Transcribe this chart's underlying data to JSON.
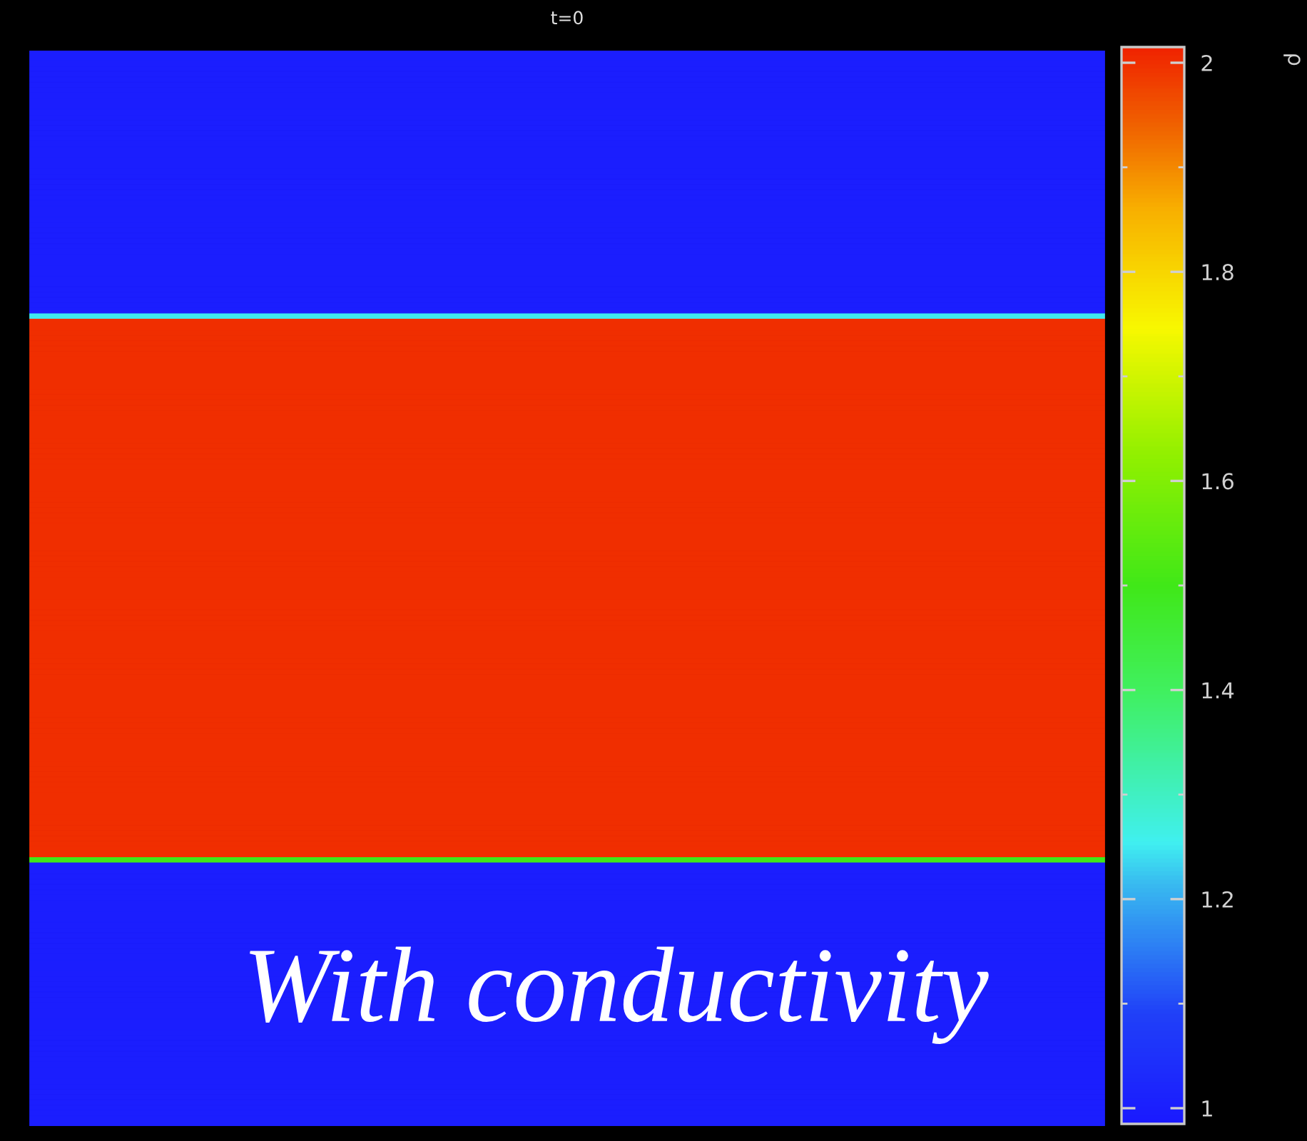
{
  "chart_data": {
    "type": "heatmap",
    "title": "t=0",
    "categories": [
      null
    ],
    "y_categories": [
      null,
      null,
      null,
      null,
      null,
      null,
      null,
      null,
      null,
      null,
      null,
      null,
      null,
      null,
      null,
      null,
      null,
      null,
      null,
      null,
      null,
      null,
      null,
      null,
      null,
      null,
      null,
      null,
      null,
      null,
      null,
      null,
      null,
      null,
      null,
      null,
      null,
      null,
      null,
      null,
      null,
      null,
      null,
      null,
      null,
      null,
      null,
      null,
      null,
      null,
      null,
      null,
      null,
      null,
      null,
      null,
      null,
      null,
      null,
      null,
      null,
      null,
      null,
      null,
      null,
      null,
      null,
      null,
      null,
      null,
      null,
      null,
      null,
      null,
      null,
      null,
      null,
      null,
      null,
      null,
      null,
      null,
      null,
      null,
      null,
      null,
      null,
      null,
      null,
      null,
      null,
      null,
      null,
      null,
      null,
      null,
      null,
      null,
      null,
      null,
      null,
      null,
      null,
      null,
      null,
      null,
      null,
      null,
      null,
      null,
      null,
      null,
      null,
      null,
      null,
      null,
      null,
      null,
      null,
      null,
      null,
      null,
      null,
      null,
      null,
      null,
      null,
      null,
      null,
      null,
      null,
      null,
      null,
      null,
      null,
      null,
      null,
      null,
      null,
      null,
      null,
      null,
      null,
      null,
      null,
      null,
      null,
      null,
      null,
      null,
      null,
      null,
      null,
      null,
      null,
      null,
      null,
      null,
      null,
      null,
      null,
      null,
      null,
      null,
      null,
      null,
      null,
      null,
      null,
      null,
      null,
      null,
      null,
      null,
      null,
      null,
      null,
      null,
      null,
      null,
      null,
      null,
      null,
      null,
      null,
      null,
      null,
      null,
      null,
      null,
      null,
      null,
      null,
      null,
      null,
      null,
      null,
      null,
      null,
      null
    ],
    "cells": [
      [
        1
      ],
      [
        1
      ],
      [
        1
      ],
      [
        1
      ],
      [
        1
      ],
      [
        1
      ],
      [
        1
      ],
      [
        1
      ],
      [
        1
      ],
      [
        1
      ],
      [
        1
      ],
      [
        1
      ],
      [
        1
      ],
      [
        1
      ],
      [
        1
      ],
      [
        1
      ],
      [
        1
      ],
      [
        1
      ],
      [
        1
      ],
      [
        1
      ],
      [
        1
      ],
      [
        1
      ],
      [
        1
      ],
      [
        1
      ],
      [
        1
      ],
      [
        1
      ],
      [
        1
      ],
      [
        1
      ],
      [
        1
      ],
      [
        1
      ],
      [
        1
      ],
      [
        1
      ],
      [
        1
      ],
      [
        1
      ],
      [
        1
      ],
      [
        1
      ],
      [
        1
      ],
      [
        1
      ],
      [
        1
      ],
      [
        1
      ],
      [
        1
      ],
      [
        1
      ],
      [
        1
      ],
      [
        1
      ],
      [
        1
      ],
      [
        1
      ],
      [
        1
      ],
      [
        1
      ],
      [
        1
      ],
      [
        1.25
      ],
      [
        2
      ],
      [
        2
      ],
      [
        2
      ],
      [
        2
      ],
      [
        2
      ],
      [
        2
      ],
      [
        2
      ],
      [
        2
      ],
      [
        2
      ],
      [
        2
      ],
      [
        2
      ],
      [
        2
      ],
      [
        2
      ],
      [
        2
      ],
      [
        2
      ],
      [
        2
      ],
      [
        2
      ],
      [
        2
      ],
      [
        2
      ],
      [
        2
      ],
      [
        2
      ],
      [
        2
      ],
      [
        2
      ],
      [
        2
      ],
      [
        2
      ],
      [
        2
      ],
      [
        2
      ],
      [
        2
      ],
      [
        2
      ],
      [
        2
      ],
      [
        2
      ],
      [
        2
      ],
      [
        2
      ],
      [
        2
      ],
      [
        2
      ],
      [
        2
      ],
      [
        2
      ],
      [
        2
      ],
      [
        2
      ],
      [
        2
      ],
      [
        2
      ],
      [
        2
      ],
      [
        2
      ],
      [
        2
      ],
      [
        2
      ],
      [
        2
      ],
      [
        2
      ],
      [
        2
      ],
      [
        2
      ],
      [
        2
      ],
      [
        2
      ],
      [
        2
      ],
      [
        2
      ],
      [
        2
      ],
      [
        2
      ],
      [
        2
      ],
      [
        2
      ],
      [
        2
      ],
      [
        2
      ],
      [
        2
      ],
      [
        2
      ],
      [
        2
      ],
      [
        2
      ],
      [
        2
      ],
      [
        2
      ],
      [
        2
      ],
      [
        2
      ],
      [
        2
      ],
      [
        2
      ],
      [
        2
      ],
      [
        2
      ],
      [
        2
      ],
      [
        2
      ],
      [
        2
      ],
      [
        2
      ],
      [
        2
      ],
      [
        2
      ],
      [
        2
      ],
      [
        2
      ],
      [
        2
      ],
      [
        2
      ],
      [
        2
      ],
      [
        2
      ],
      [
        2
      ],
      [
        2
      ],
      [
        2
      ],
      [
        2
      ],
      [
        2
      ],
      [
        2
      ],
      [
        2
      ],
      [
        2
      ],
      [
        2
      ],
      [
        2
      ],
      [
        2
      ],
      [
        2
      ],
      [
        2
      ],
      [
        2
      ],
      [
        2
      ],
      [
        2
      ],
      [
        2
      ],
      [
        1.5
      ],
      [
        1
      ],
      [
        1
      ],
      [
        1
      ],
      [
        1
      ],
      [
        1
      ],
      [
        1
      ],
      [
        1
      ],
      [
        1
      ],
      [
        1
      ],
      [
        1
      ],
      [
        1
      ],
      [
        1
      ],
      [
        1
      ],
      [
        1
      ],
      [
        1
      ],
      [
        1
      ],
      [
        1
      ],
      [
        1
      ],
      [
        1
      ],
      [
        1
      ],
      [
        1
      ],
      [
        1
      ],
      [
        1
      ],
      [
        1
      ],
      [
        1
      ],
      [
        1
      ],
      [
        1
      ],
      [
        1
      ],
      [
        1
      ],
      [
        1
      ],
      [
        1
      ],
      [
        1
      ],
      [
        1
      ],
      [
        1
      ],
      [
        1
      ],
      [
        1
      ],
      [
        1
      ],
      [
        1
      ],
      [
        1
      ],
      [
        1
      ],
      [
        1
      ],
      [
        1
      ],
      [
        1
      ],
      [
        1
      ],
      [
        1
      ],
      [
        1
      ],
      [
        1
      ],
      [
        1
      ],
      [
        1
      ]
    ],
    "clim": [
      0.985,
      2.015
    ],
    "cticks": [
      1,
      {
        "value": 1.1,
        "label": null
      },
      1.2,
      {
        "value": 1.3,
        "label": null
      },
      1.4,
      {
        "value": 1.5,
        "label": null
      },
      1.6,
      {
        "value": 1.7,
        "label": null
      },
      1.8,
      {
        "value": 1.9,
        "label": null
      },
      2
    ],
    "clabel": "ρ",
    "annotations": [
      "With conductivity"
    ]
  }
}
